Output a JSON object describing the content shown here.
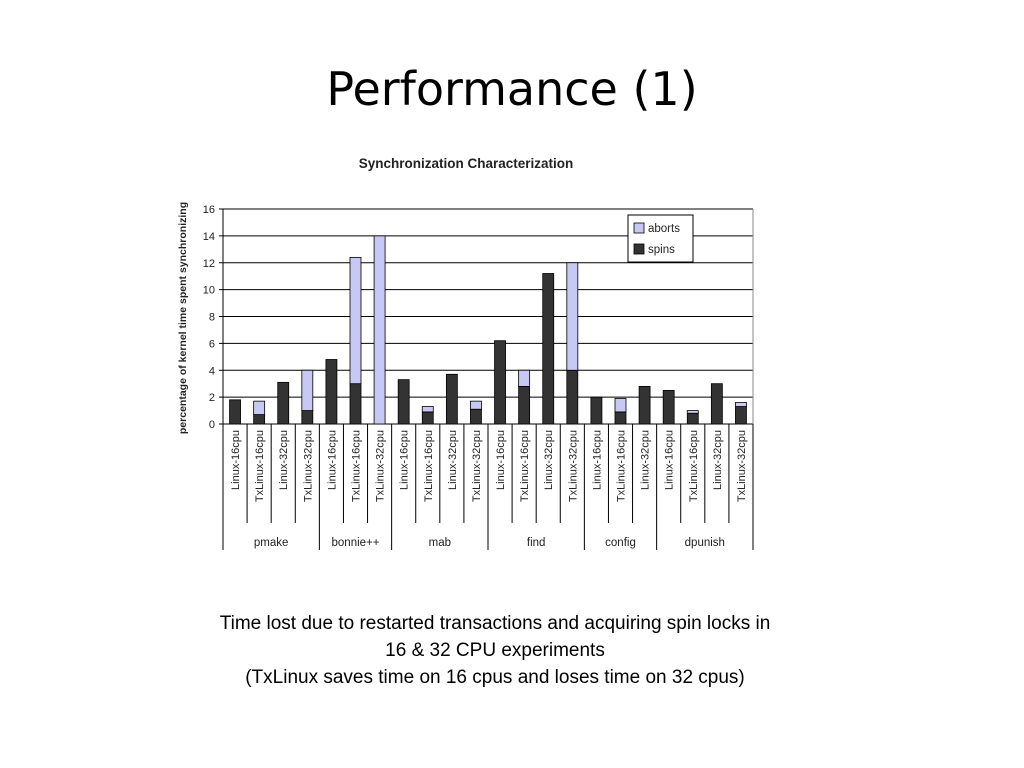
{
  "slide": {
    "title": "Performance (1)",
    "caption": [
      "Time lost due to restarted transactions and acquiring spin locks in",
      "16 & 32 CPU experiments",
      "(TxLinux saves time on 16 cpus and loses time on 32 cpus)"
    ]
  },
  "chart_data": {
    "type": "bar",
    "stacked": true,
    "title": "Synchronization Characterization",
    "xlabel": "",
    "ylabel": "percentage of kernel time spent synchronizing",
    "ylim": [
      0,
      16
    ],
    "yticks": [
      0,
      2,
      4,
      6,
      8,
      10,
      12,
      14,
      16
    ],
    "grid": true,
    "legend_position": "top-right",
    "categories": [
      "Linux-16cpu",
      "TxLinux-16cpu",
      "Linux-32cpu",
      "TxLinux-32cpu",
      "Linux-16cpu",
      "TxLinux-16cpu",
      "TxLinux-32cpu",
      "Linux-16cpu",
      "TxLinux-16cpu",
      "Linux-32cpu",
      "TxLinux-32cpu",
      "Linux-16cpu",
      "TxLinux-16cpu",
      "Linux-32cpu",
      "TxLinux-32cpu",
      "Linux-16cpu",
      "TxLinux-16cpu",
      "Linux-32cpu",
      "Linux-16cpu",
      "TxLinux-16cpu",
      "Linux-32cpu",
      "TxLinux-32cpu"
    ],
    "groups": [
      {
        "label": "pmake",
        "count": 4
      },
      {
        "label": "bonnie++",
        "count": 3
      },
      {
        "label": "mab",
        "count": 4
      },
      {
        "label": "find",
        "count": 4
      },
      {
        "label": "config",
        "count": 3
      },
      {
        "label": "dpunish",
        "count": 4
      }
    ],
    "series": [
      {
        "name": "spins",
        "color": "#333333",
        "values": [
          1.8,
          0.7,
          3.1,
          1.0,
          4.8,
          3.0,
          0,
          3.3,
          0.9,
          3.7,
          1.1,
          6.2,
          2.8,
          11.2,
          4.0,
          2.0,
          0.9,
          2.8,
          2.5,
          0.8,
          3.0,
          1.3
        ]
      },
      {
        "name": "aborts",
        "color": "#c8c8f4",
        "values": [
          0,
          1.0,
          0,
          3.0,
          0,
          9.4,
          14.0,
          0,
          0.4,
          0,
          0.6,
          0,
          1.2,
          0,
          8.0,
          0,
          1.0,
          0,
          0,
          0.2,
          0,
          0.3
        ]
      }
    ]
  }
}
